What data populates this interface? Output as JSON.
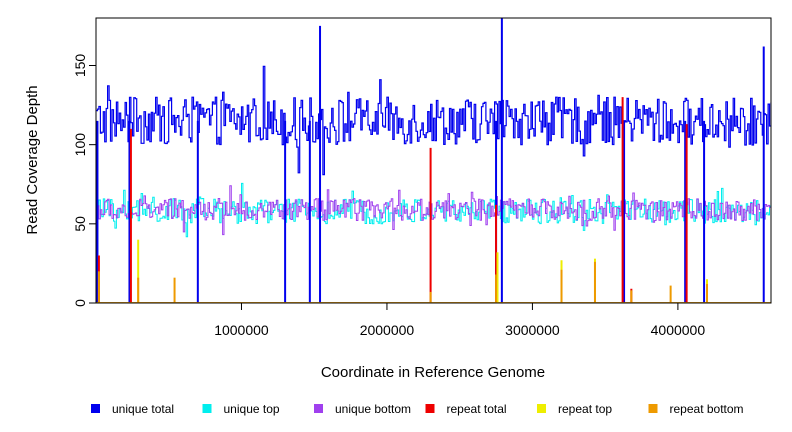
{
  "chart_data": {
    "type": "line",
    "title": "",
    "xlabel": "Coordinate in Reference Genome",
    "ylabel": "Read Coverage Depth",
    "xlim": [
      0,
      4640000
    ],
    "ylim": [
      0,
      180
    ],
    "x_ticks": [
      1000000,
      2000000,
      3000000,
      4000000
    ],
    "x_tick_labels": [
      "1000000",
      "2000000",
      "3000000",
      "4000000"
    ],
    "y_ticks": [
      0,
      50,
      100,
      150
    ],
    "y_tick_labels": [
      "0",
      "50",
      "100",
      "150"
    ],
    "grid": false,
    "legend_position": "bottom",
    "x_sample_step": 10000,
    "series": [
      {
        "name": "unique total",
        "color": "#0000ee",
        "base": 115,
        "amplitude": 15,
        "dropouts": [
          10000,
          230000,
          700000,
          1300000,
          1470000,
          2750000,
          3630000,
          4050000,
          4180000
        ],
        "spikes": [
          [
            1540000,
            175
          ],
          [
            2790000,
            183
          ],
          [
            4590000,
            162
          ]
        ]
      },
      {
        "name": "unique top",
        "color": "#00eeee",
        "base": 58,
        "amplitude": 8,
        "dropouts": [],
        "spikes": []
      },
      {
        "name": "unique bottom",
        "color": "#a040ee",
        "base": 59,
        "amplitude": 7,
        "dropouts": [],
        "spikes": []
      },
      {
        "name": "repeat total",
        "color": "#ee0000",
        "base": 0,
        "amplitude": 0,
        "dropouts": [],
        "spikes": [
          [
            20000,
            30
          ],
          [
            240000,
            110
          ],
          [
            2300000,
            98
          ],
          [
            2750000,
            62
          ],
          [
            3620000,
            130
          ],
          [
            3680000,
            9
          ],
          [
            4060000,
            113
          ]
        ]
      },
      {
        "name": "repeat top",
        "color": "#eeee00",
        "base": 0,
        "amplitude": 0,
        "dropouts": [],
        "spikes": [
          [
            290000,
            40
          ],
          [
            2760000,
            32
          ],
          [
            3200000,
            27
          ],
          [
            3430000,
            28
          ],
          [
            4200000,
            15
          ]
        ]
      },
      {
        "name": "repeat bottom",
        "color": "#ee9a00",
        "base": 0,
        "amplitude": 0,
        "dropouts": [],
        "spikes": [
          [
            20000,
            20
          ],
          [
            290000,
            16
          ],
          [
            540000,
            16
          ],
          [
            2300000,
            7
          ],
          [
            2750000,
            18
          ],
          [
            3200000,
            21
          ],
          [
            3430000,
            26
          ],
          [
            3680000,
            8
          ],
          [
            3950000,
            11
          ],
          [
            4200000,
            12
          ]
        ]
      }
    ]
  }
}
